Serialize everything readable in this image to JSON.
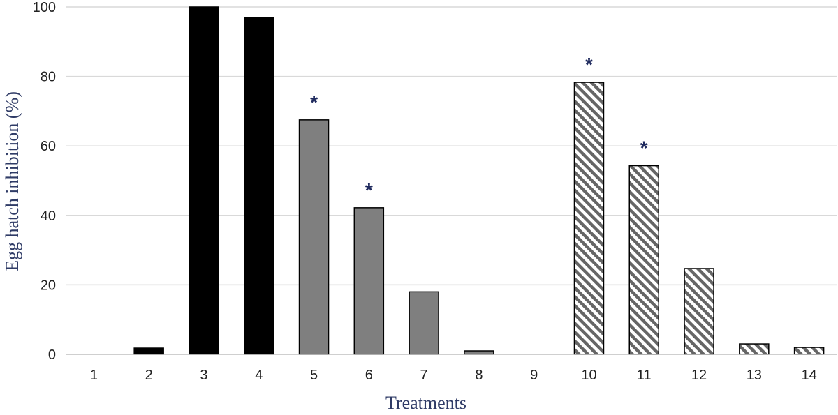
{
  "chart_data": {
    "type": "bar",
    "title": "",
    "xlabel": "Treatments",
    "ylabel": "Egg hatch inhibition (%)",
    "ylim": [
      0,
      100
    ],
    "yticks": [
      0,
      20,
      40,
      60,
      80,
      100
    ],
    "grid": true,
    "categories": [
      "1",
      "2",
      "3",
      "4",
      "5",
      "6",
      "7",
      "8",
      "9",
      "10",
      "11",
      "12",
      "13",
      "14"
    ],
    "values": [
      0,
      1.8,
      100,
      97,
      67.5,
      42.2,
      18,
      1,
      0,
      78.3,
      54.3,
      24.7,
      3,
      2
    ],
    "bar_fill": [
      "none",
      "black",
      "black",
      "black",
      "gray",
      "gray",
      "gray",
      "gray",
      "none",
      "hatched",
      "hatched",
      "hatched",
      "hatched",
      "hatched"
    ],
    "significance_marker": "*",
    "significant_categories": [
      "5",
      "6",
      "10",
      "11"
    ],
    "colors": {
      "black": "#000000",
      "gray": "#7f7f7f",
      "hatch": "#666666",
      "grid": "#d9d9d9",
      "axis_title": "#2f3b66",
      "marker": "#1f2a5e"
    }
  }
}
